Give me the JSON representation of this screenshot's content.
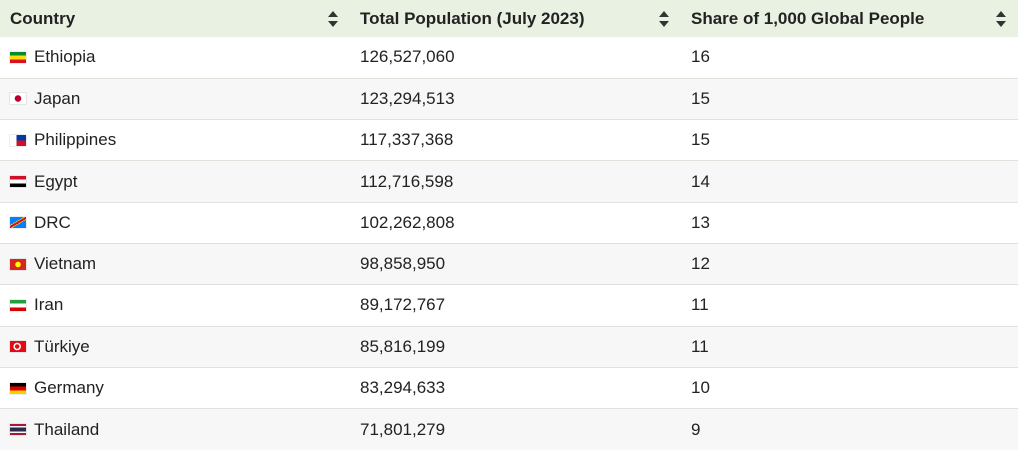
{
  "table": {
    "headers": {
      "country": "Country",
      "population": "Total Population (July 2023)",
      "share": "Share of 1,000 Global People"
    },
    "rows": [
      {
        "flag_icon": "ethiopia-flag-icon",
        "country": "Ethiopia",
        "population": "126,527,060",
        "share": "16",
        "flag_colors": [
          "#078930",
          "#fcdd09",
          "#da121a"
        ],
        "flag_layout": "hstripes"
      },
      {
        "flag_icon": "japan-flag-icon",
        "country": "Japan",
        "population": "123,294,513",
        "share": "15",
        "flag_colors": [
          "#ffffff",
          "#bc002d"
        ],
        "flag_layout": "disc"
      },
      {
        "flag_icon": "philippines-flag-icon",
        "country": "Philippines",
        "population": "117,337,368",
        "share": "15",
        "flag_colors": [
          "#0038a8",
          "#ce1126",
          "#ffffff"
        ],
        "flag_layout": "ph"
      },
      {
        "flag_icon": "egypt-flag-icon",
        "country": "Egypt",
        "population": "112,716,598",
        "share": "14",
        "flag_colors": [
          "#ce1126",
          "#ffffff",
          "#000000"
        ],
        "flag_layout": "hstripes"
      },
      {
        "flag_icon": "drc-flag-icon",
        "country": "DRC",
        "population": "102,262,808",
        "share": "13",
        "flag_colors": [
          "#007fff",
          "#ce1021",
          "#f7d618"
        ],
        "flag_layout": "drc"
      },
      {
        "flag_icon": "vietnam-flag-icon",
        "country": "Vietnam",
        "population": "98,858,950",
        "share": "12",
        "flag_colors": [
          "#da251d",
          "#ffff00"
        ],
        "flag_layout": "star"
      },
      {
        "flag_icon": "iran-flag-icon",
        "country": "Iran",
        "population": "89,172,767",
        "share": "11",
        "flag_colors": [
          "#239f40",
          "#ffffff",
          "#da0000"
        ],
        "flag_layout": "hstripes"
      },
      {
        "flag_icon": "turkiye-flag-icon",
        "country": "Türkiye",
        "population": "85,816,199",
        "share": "11",
        "flag_colors": [
          "#e30a17",
          "#ffffff"
        ],
        "flag_layout": "crescent"
      },
      {
        "flag_icon": "germany-flag-icon",
        "country": "Germany",
        "population": "83,294,633",
        "share": "10",
        "flag_colors": [
          "#000000",
          "#dd0000",
          "#ffce00"
        ],
        "flag_layout": "hstripes"
      },
      {
        "flag_icon": "thailand-flag-icon",
        "country": "Thailand",
        "population": "71,801,279",
        "share": "9",
        "flag_colors": [
          "#a51931",
          "#f4f5f8",
          "#2d2a4a",
          "#f4f5f8",
          "#a51931"
        ],
        "flag_layout": "thai"
      }
    ]
  },
  "colors": {
    "header_bg": "#e9f1e3",
    "row_alt_bg": "#f7f7f7",
    "row_border": "#dfe3dc"
  }
}
